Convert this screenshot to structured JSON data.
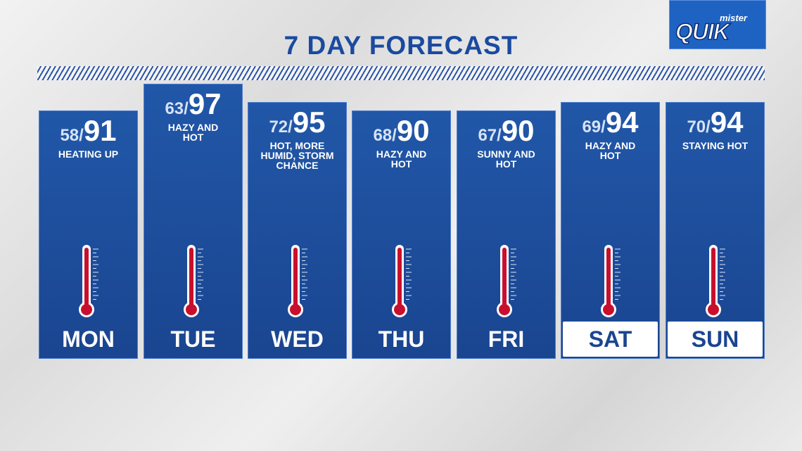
{
  "title": "7 DAY FORECAST",
  "logo": {
    "small": "mister",
    "main": "QUIK"
  },
  "separator": "/",
  "days": [
    {
      "day": "MON",
      "low": 58,
      "high": 91,
      "description": [
        "HEATING UP"
      ],
      "highlighted": false
    },
    {
      "day": "TUE",
      "low": 63,
      "high": 97,
      "description": [
        "HAZY AND",
        "HOT"
      ],
      "highlighted": false
    },
    {
      "day": "WED",
      "low": 72,
      "high": 95,
      "description": [
        "HOT, MORE",
        "HUMID, STORM",
        "CHANCE"
      ],
      "highlighted": false
    },
    {
      "day": "THU",
      "low": 68,
      "high": 90,
      "description": [
        "HAZY AND",
        "HOT"
      ],
      "highlighted": false
    },
    {
      "day": "FRI",
      "low": 67,
      "high": 90,
      "description": [
        "SUNNY AND",
        "HOT"
      ],
      "highlighted": false
    },
    {
      "day": "SAT",
      "low": 69,
      "high": 94,
      "description": [
        "HAZY AND",
        "HOT"
      ],
      "highlighted": true
    },
    {
      "day": "SUN",
      "low": 70,
      "high": 94,
      "description": [
        "STAYING HOT"
      ],
      "highlighted": true
    }
  ]
}
